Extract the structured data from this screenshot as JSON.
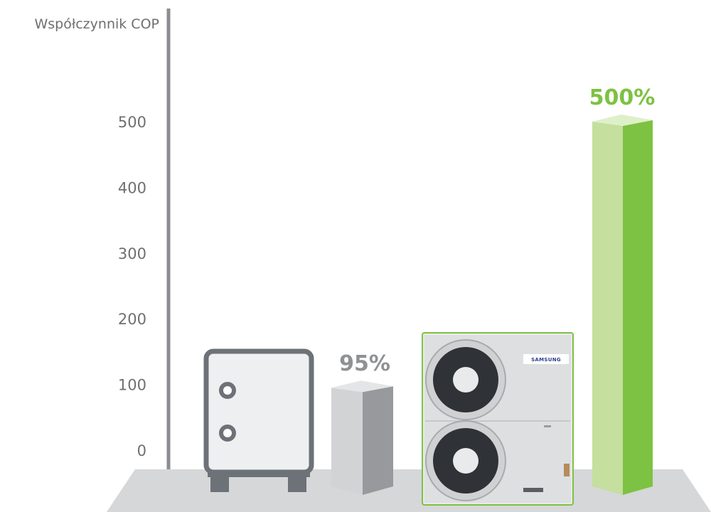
{
  "chart_data": {
    "type": "bar",
    "ylabel": "Współczynnik COP",
    "yticks": [
      0,
      100,
      200,
      300,
      400,
      500
    ],
    "ylim": [
      0,
      600
    ],
    "grid": false,
    "categories": [
      "",
      ""
    ],
    "values": [
      95,
      500
    ],
    "value_labels": [
      "95%",
      "500%"
    ],
    "bar_colors": [
      "#a9abae",
      "#7dc242"
    ],
    "category_icons": [
      "boiler-icon",
      "heat-pump-unit-icon"
    ]
  },
  "brand_text": "SAMSUNG",
  "colors": {
    "axis": "#8b8d90",
    "floor": "#d6d7d8",
    "grey_value": "#8f9193",
    "green_value": "#7dc242"
  }
}
